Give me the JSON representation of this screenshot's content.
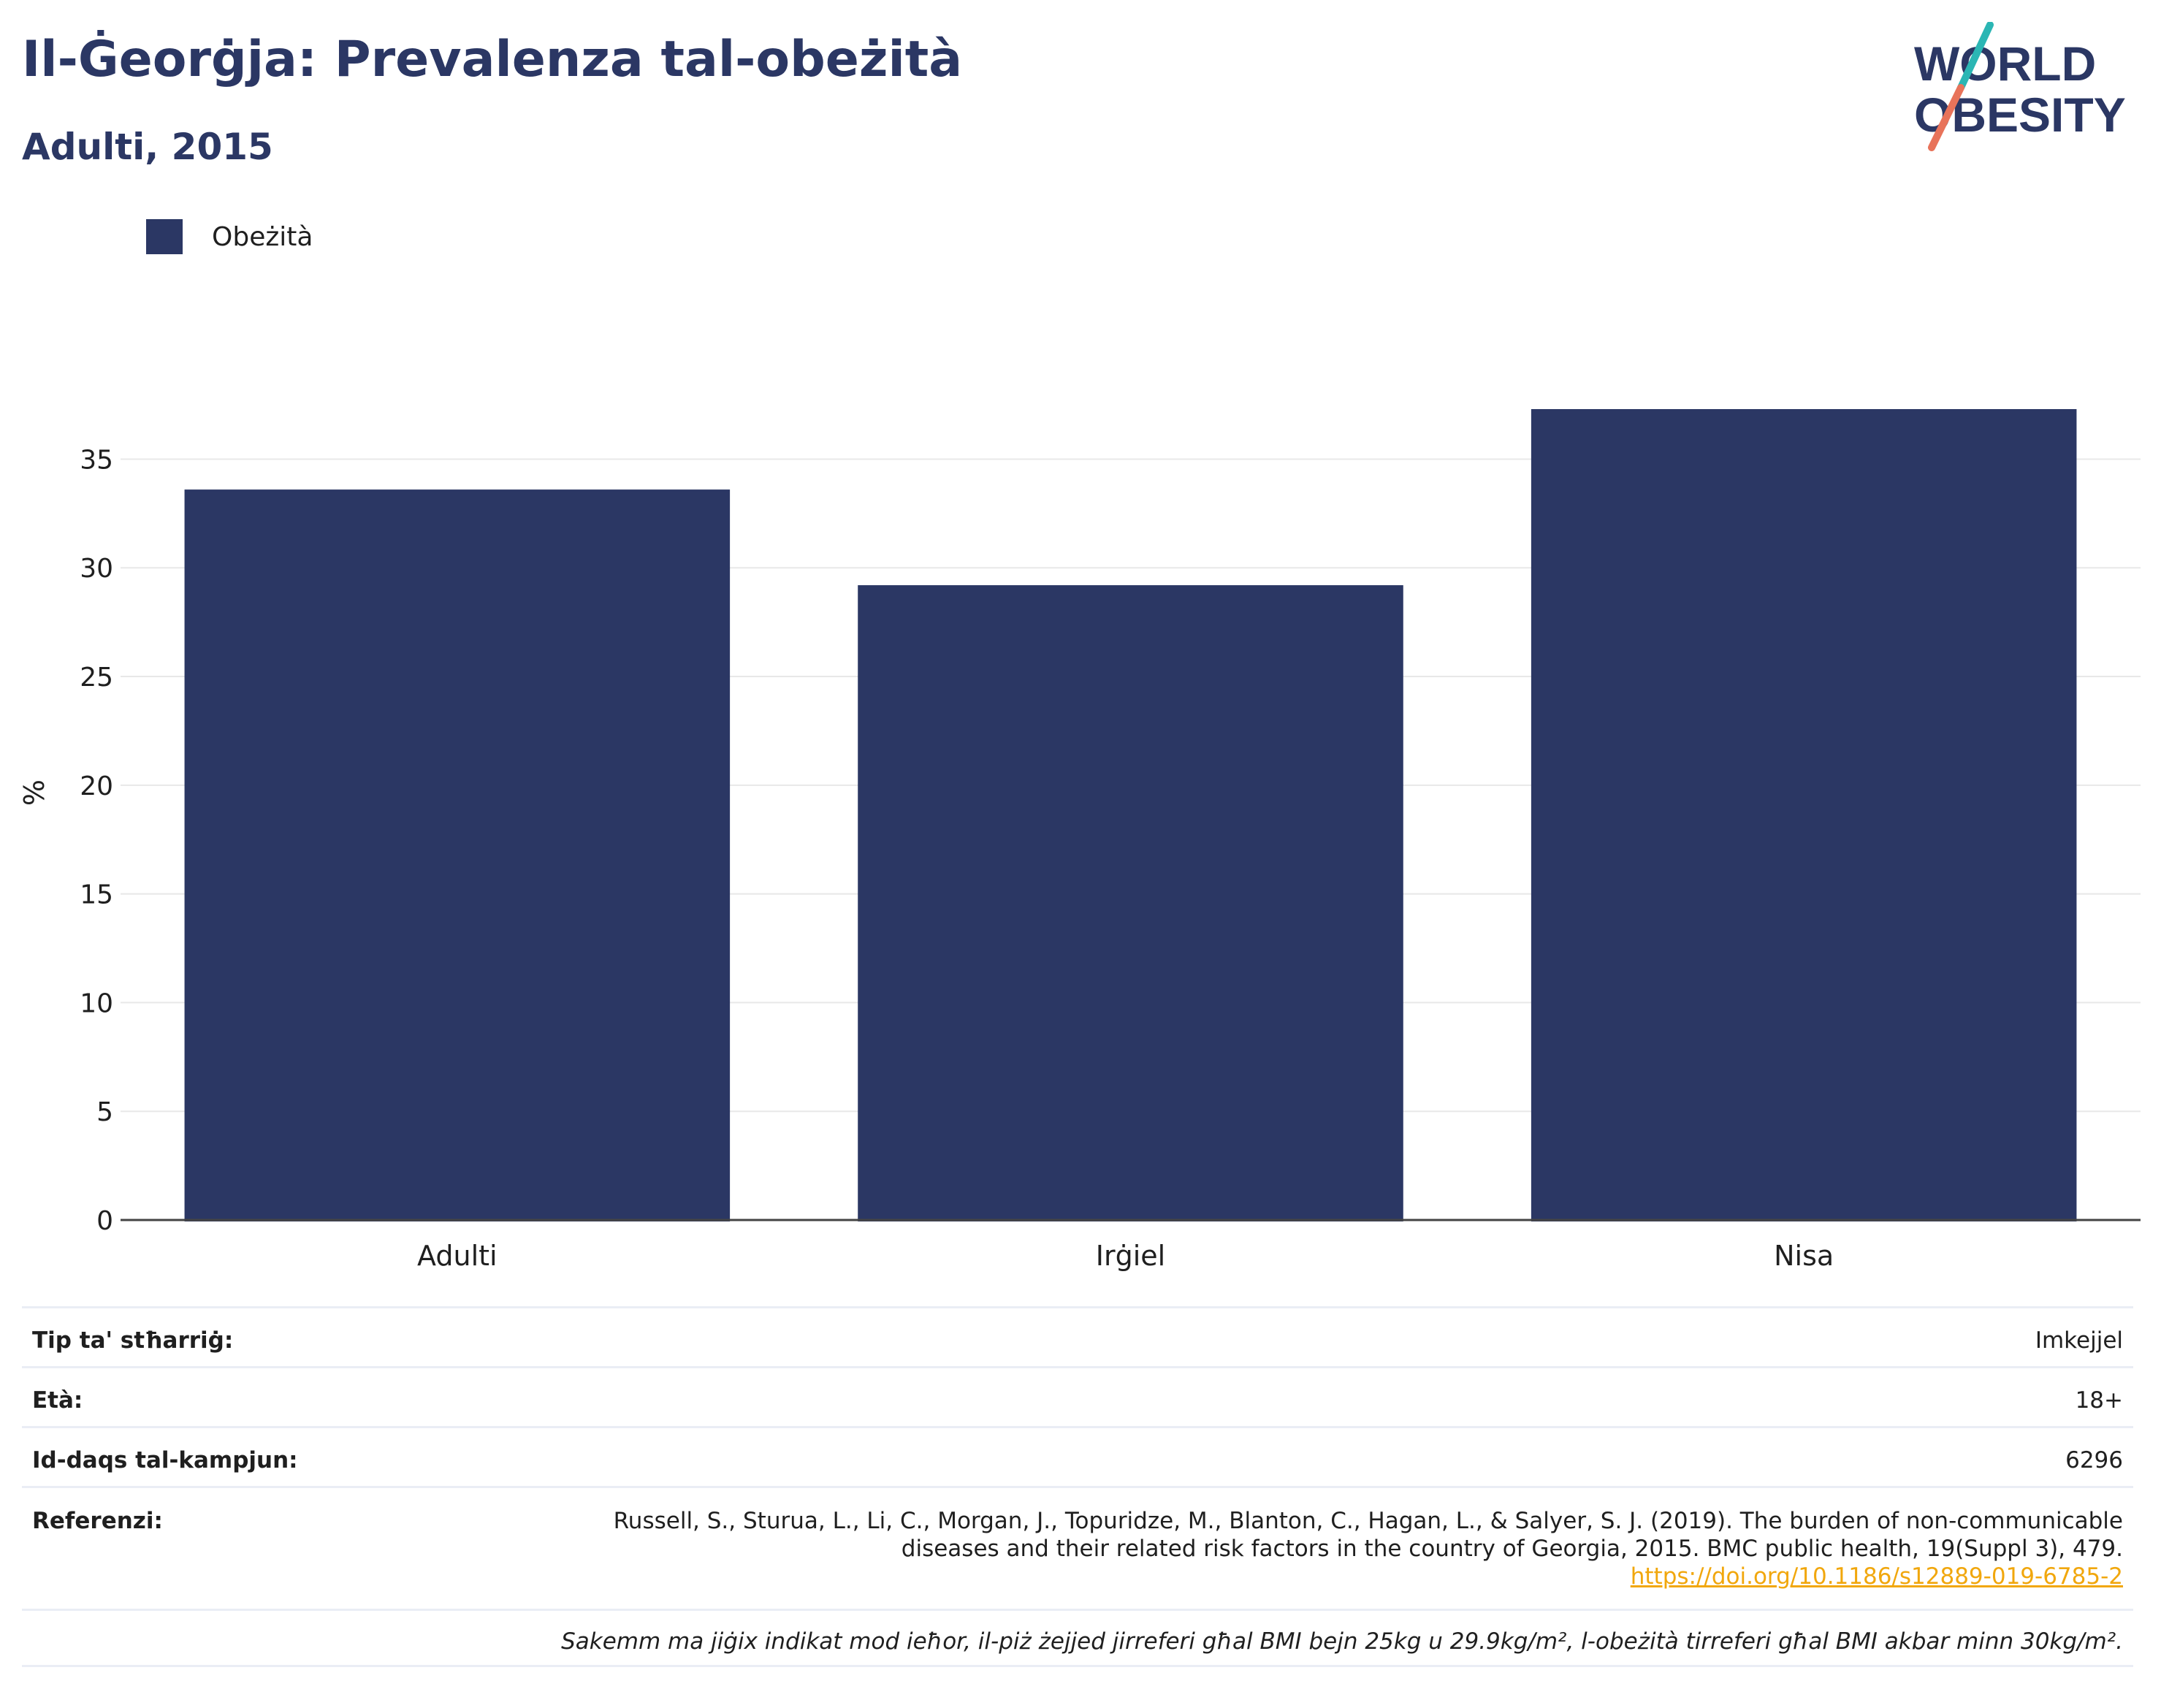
{
  "title": "Il-Ġeorġja: Prevalenza tal-obeżità",
  "subtitle": "Adulti, 2015",
  "logo": {
    "line1": "WORLD",
    "line2": "OBESITY",
    "colors": {
      "text": "#2b3764",
      "slash_teal": "#2bb6b4",
      "slash_coral": "#e8735a"
    }
  },
  "legend": {
    "label": "Obeżità",
    "color": "#2b3764"
  },
  "chart_data": {
    "type": "bar",
    "title": "Il-Ġeorġja: Prevalenza tal-obeżità",
    "subtitle": "Adulti, 2015",
    "categories": [
      "Adulti",
      "Irġiel",
      "Nisa"
    ],
    "series": [
      {
        "name": "Obeżità",
        "values": [
          33.6,
          29.2,
          37.3
        ],
        "color": "#2b3764"
      }
    ],
    "ylabel": "%",
    "xlabel": "",
    "ylim": [
      0,
      37.3
    ],
    "yticks": [
      0,
      5,
      10,
      15,
      20,
      25,
      30,
      35
    ],
    "grid": true,
    "legend_position": "top-left"
  },
  "info": {
    "type_label": "Tip ta' stħarriġ:",
    "type_value": "Imkejjel",
    "age_label": "Età:",
    "age_value": "18+",
    "sample_label": "Id-daqs tal-kampjun:",
    "sample_value": "6296",
    "ref_label": "Referenzi:",
    "ref_text": "Russell, S., Sturua, L., Li, C., Morgan, J., Topuridze, M., Blanton, C., Hagan, L., & Salyer, S. J. (2019). The burden of non-communicable diseases and their related risk factors in the country of Georgia, 2015. BMC public health, 19(Suppl 3), 479.",
    "ref_link": "https://doi.org/10.1186/s12889-019-6785-2",
    "note": "Sakemm ma jiġix indikat mod ieħor, il-piż żejjed jirreferi għal BMI bejn 25kg u 29.9kg/m², l-obeżità tirreferi għal BMI akbar minn 30kg/m²."
  }
}
